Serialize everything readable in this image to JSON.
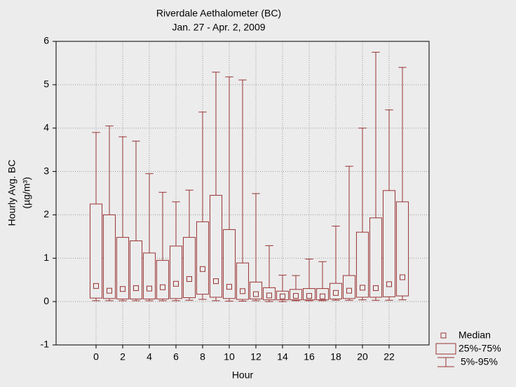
{
  "chart_data": {
    "type": "box",
    "title": "Riverdale Aethalometer (BC)",
    "subtitle": "Jan. 27 - Apr. 2, 2009",
    "x_label": "Hour",
    "y_label": "Hourly Avg. BC",
    "y_unit": "(µg/m³)",
    "color": "#993333",
    "x": [
      0,
      1,
      2,
      3,
      4,
      5,
      6,
      7,
      8,
      9,
      10,
      11,
      12,
      13,
      14,
      15,
      16,
      17,
      18,
      19,
      20,
      21,
      22,
      23
    ],
    "p5": [
      0.02,
      0.02,
      0.02,
      0.02,
      0.02,
      0.02,
      0.02,
      0.03,
      0.05,
      0.02,
      0.01,
      0.01,
      0.02,
      0.0,
      0.0,
      0.02,
      0.02,
      0.02,
      0.03,
      0.03,
      0.04,
      0.03,
      0.03,
      0.04
    ],
    "q1": [
      0.08,
      0.07,
      0.06,
      0.06,
      0.06,
      0.06,
      0.07,
      0.09,
      0.17,
      0.1,
      0.07,
      0.05,
      0.06,
      0.04,
      0.04,
      0.04,
      0.04,
      0.04,
      0.06,
      0.07,
      0.1,
      0.1,
      0.11,
      0.13
    ],
    "median": [
      0.36,
      0.25,
      0.29,
      0.31,
      0.3,
      0.33,
      0.41,
      0.52,
      0.75,
      0.47,
      0.34,
      0.24,
      0.17,
      0.14,
      0.12,
      0.13,
      0.13,
      0.12,
      0.2,
      0.25,
      0.32,
      0.31,
      0.4,
      0.56
    ],
    "q3": [
      2.25,
      2.0,
      1.48,
      1.4,
      1.12,
      0.95,
      1.28,
      1.48,
      1.84,
      2.45,
      1.66,
      0.89,
      0.45,
      0.32,
      0.24,
      0.28,
      0.3,
      0.3,
      0.42,
      0.6,
      1.6,
      1.93,
      2.56,
      2.3
    ],
    "p95": [
      3.9,
      4.05,
      3.8,
      3.7,
      2.95,
      2.52,
      2.3,
      2.57,
      4.37,
      5.29,
      5.18,
      5.11,
      2.49,
      1.29,
      0.61,
      0.6,
      0.98,
      0.92,
      1.74,
      3.12,
      4.0,
      5.75,
      4.42,
      5.4
    ],
    "legend": {
      "median": "Median",
      "box": "25%-75%",
      "whisker": "5%-95%"
    },
    "xlim": [
      -3,
      25
    ],
    "xticks": [
      0,
      2,
      4,
      6,
      8,
      10,
      12,
      14,
      16,
      18,
      20,
      22
    ],
    "ylim": [
      -1,
      6
    ],
    "yticks": [
      -1,
      0,
      1,
      2,
      3,
      4,
      5,
      6
    ],
    "grid": true
  }
}
